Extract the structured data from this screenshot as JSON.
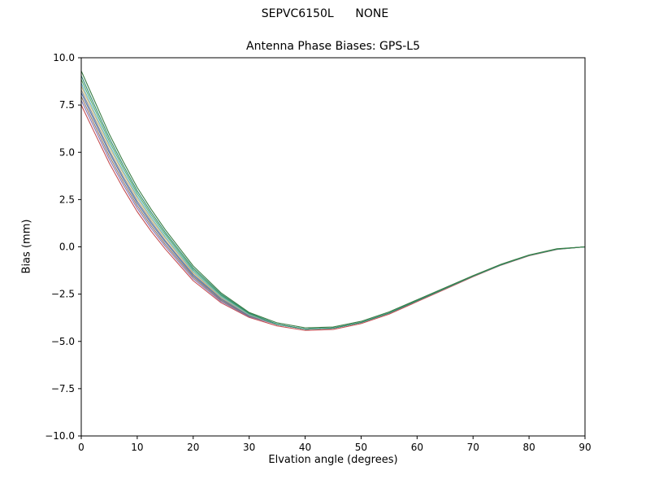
{
  "figure": {
    "suptitle": "SEPVC6150L      NONE",
    "title": "Antenna Phase Biases: GPS-L5",
    "xlabel": "Elvation angle (degrees)",
    "ylabel": "Bias (mm)"
  },
  "chart_data": {
    "type": "line",
    "suptitle": "SEPVC6150L      NONE",
    "title": "Antenna Phase Biases: GPS-L5",
    "xlabel": "Elvation angle (degrees)",
    "ylabel": "Bias (mm)",
    "xlim": [
      0,
      90
    ],
    "ylim": [
      -10,
      10
    ],
    "grid": false,
    "legend": "none",
    "xticks": [
      0,
      10,
      20,
      30,
      40,
      50,
      60,
      70,
      80,
      90
    ],
    "xtick_labels": [
      "0",
      "10",
      "20",
      "30",
      "40",
      "50",
      "60",
      "70",
      "80",
      "90"
    ],
    "yticks": [
      -10,
      -7.5,
      -5,
      -2.5,
      0,
      2.5,
      5,
      7.5,
      10
    ],
    "ytick_labels": [
      "−10.0",
      "−7.5",
      "−5.0",
      "−2.5",
      "0.0",
      "2.5",
      "5.0",
      "7.5",
      "10.0"
    ],
    "x": [
      0,
      2.5,
      5,
      7.5,
      10,
      12.5,
      15,
      17.5,
      20,
      25,
      30,
      35,
      40,
      45,
      50,
      55,
      60,
      65,
      70,
      75,
      80,
      85,
      90
    ],
    "series": [
      {
        "color": "#c44e52",
        "values": [
          7.5,
          5.96,
          4.43,
          3.09,
          1.86,
          0.82,
          -0.11,
          -0.95,
          -1.79,
          -2.96,
          -3.73,
          -4.18,
          -4.42,
          -4.37,
          -4.06,
          -3.56,
          -2.9,
          -2.24,
          -1.58,
          -0.97,
          -0.47,
          -0.14,
          0.0
        ]
      },
      {
        "color": "#8172b2",
        "values": [
          7.75,
          6.2,
          4.64,
          3.29,
          2.04,
          0.98,
          0.03,
          -0.83,
          -1.68,
          -2.89,
          -3.69,
          -4.1,
          -4.35,
          -4.3,
          -4.0,
          -3.5,
          -2.85,
          -2.2,
          -1.55,
          -0.95,
          -0.45,
          -0.12,
          0.0
        ]
      },
      {
        "color": "#937860",
        "values": [
          7.95,
          6.38,
          4.81,
          3.44,
          2.18,
          1.11,
          0.14,
          -0.73,
          -1.59,
          -2.83,
          -3.66,
          -4.1,
          -4.35,
          -4.3,
          -4.0,
          -3.5,
          -2.85,
          -2.2,
          -1.55,
          -0.95,
          -0.45,
          -0.12,
          0.0
        ]
      },
      {
        "color": "#4c72b0",
        "values": [
          8.15,
          6.57,
          4.99,
          3.6,
          2.32,
          1.24,
          0.26,
          -0.63,
          -1.51,
          -2.77,
          -3.64,
          -4.1,
          -4.35,
          -4.3,
          -4.0,
          -3.5,
          -2.85,
          -2.2,
          -1.55,
          -0.95,
          -0.45,
          -0.12,
          0.0
        ]
      },
      {
        "color": "#8c8c8c",
        "values": [
          8.3,
          6.71,
          5.11,
          3.72,
          2.43,
          1.34,
          0.34,
          -0.55,
          -1.44,
          -2.73,
          -3.61,
          -4.1,
          -4.35,
          -4.3,
          -4.0,
          -3.5,
          -2.85,
          -2.2,
          -1.55,
          -0.95,
          -0.45,
          -0.12,
          0.0
        ]
      },
      {
        "color": "#ccb974",
        "values": [
          8.5,
          6.89,
          5.29,
          3.88,
          2.57,
          1.46,
          0.46,
          -0.45,
          -1.36,
          -2.67,
          -3.59,
          -4.1,
          -4.35,
          -4.3,
          -4.0,
          -3.5,
          -2.85,
          -2.2,
          -1.55,
          -0.95,
          -0.45,
          -0.12,
          0.0
        ]
      },
      {
        "color": "#64b5cd",
        "values": [
          8.65,
          7.03,
          5.42,
          4.0,
          2.68,
          1.56,
          0.54,
          -0.38,
          -1.29,
          -2.63,
          -3.57,
          -4.1,
          -4.35,
          -4.3,
          -4.0,
          -3.5,
          -2.85,
          -2.2,
          -1.55,
          -0.95,
          -0.45,
          -0.12,
          0.0
        ]
      },
      {
        "color": "#55a868",
        "values": [
          8.85,
          7.22,
          5.59,
          4.16,
          2.82,
          1.69,
          0.66,
          -0.28,
          -1.21,
          -2.57,
          -3.54,
          -4.1,
          -4.35,
          -4.3,
          -4.0,
          -3.5,
          -2.85,
          -2.2,
          -1.55,
          -0.95,
          -0.45,
          -0.12,
          0.0
        ]
      },
      {
        "color": "#2e8b74",
        "values": [
          9.05,
          7.4,
          5.76,
          4.31,
          2.96,
          1.82,
          0.77,
          -0.18,
          -1.12,
          -2.51,
          -3.51,
          -4.1,
          -4.35,
          -4.3,
          -4.0,
          -3.5,
          -2.85,
          -2.2,
          -1.55,
          -0.95,
          -0.45,
          -0.12,
          0.0
        ]
      },
      {
        "color": "#3a7d44",
        "values": [
          9.3,
          7.64,
          5.97,
          4.51,
          3.14,
          1.98,
          0.91,
          -0.05,
          -1.01,
          -2.44,
          -3.47,
          -4.02,
          -4.28,
          -4.24,
          -3.94,
          -3.44,
          -2.8,
          -2.16,
          -1.52,
          -0.92,
          -0.43,
          -0.1,
          0.0
        ]
      }
    ]
  }
}
